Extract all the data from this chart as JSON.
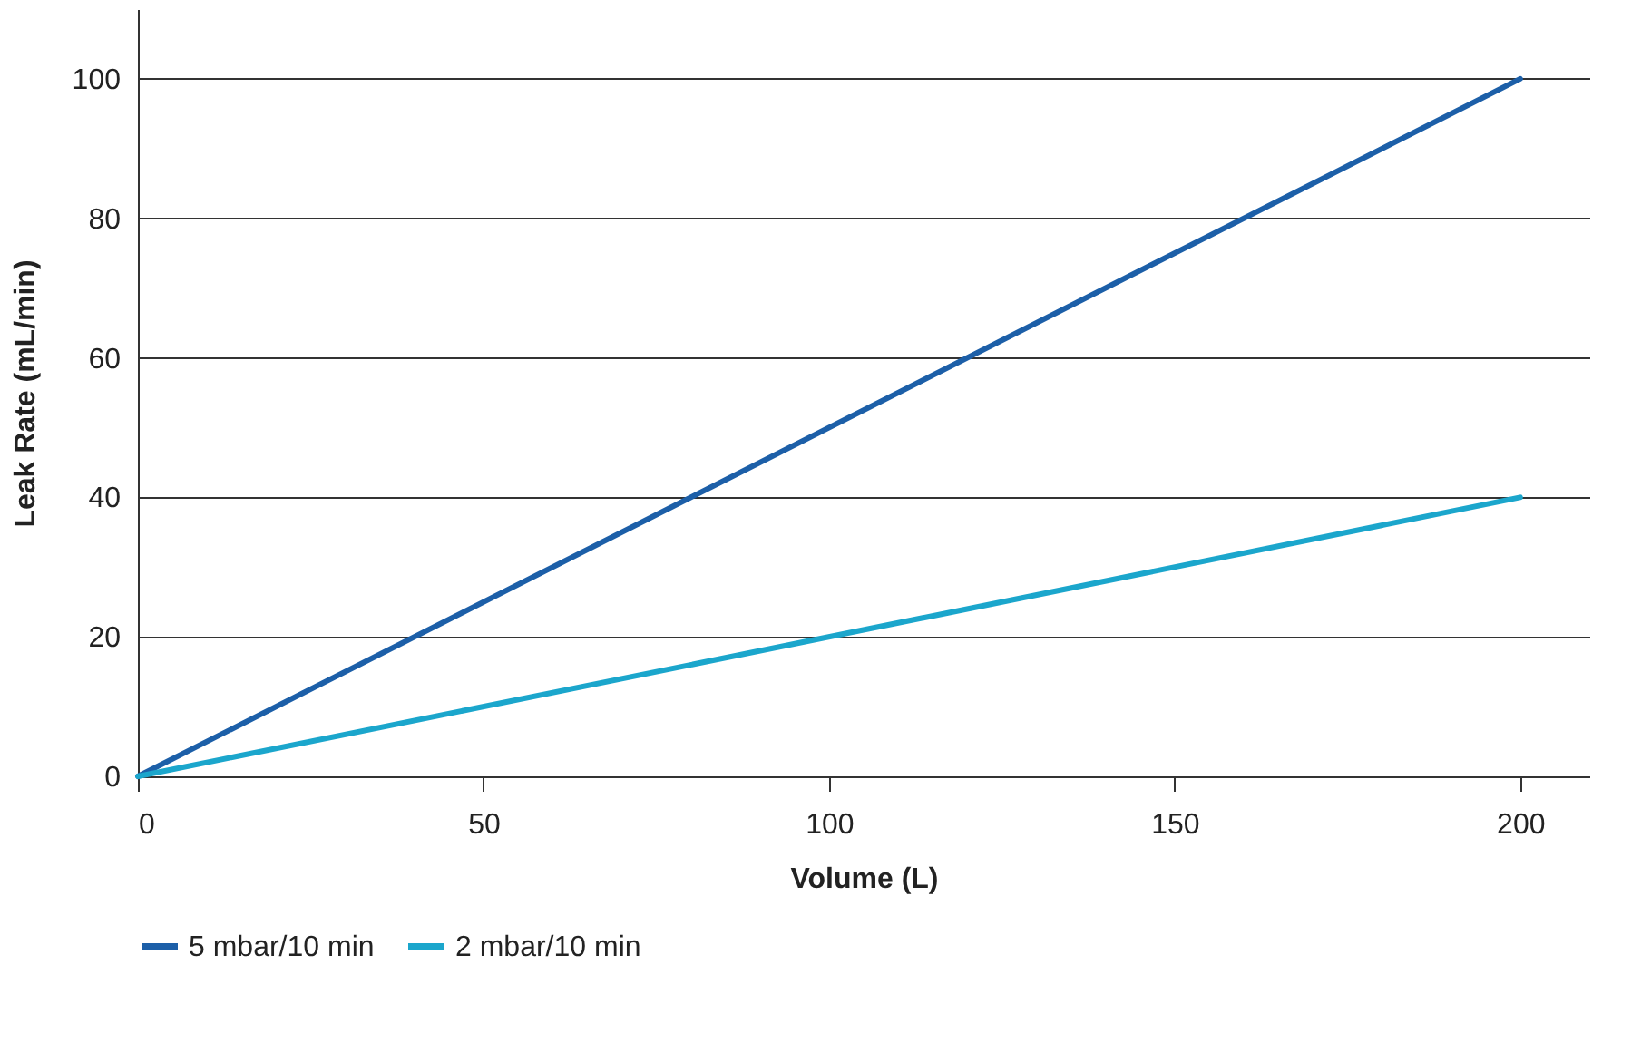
{
  "chart_data": {
    "type": "line",
    "xlabel": "Volume (L)",
    "ylabel": "Leak Rate (mL/min)",
    "x": [
      0,
      200
    ],
    "series": [
      {
        "name": "5 mbar/10 min",
        "color": "#1c5fa8",
        "values": [
          0,
          100
        ]
      },
      {
        "name": "2 mbar/10 min",
        "color": "#1ba6cc",
        "values": [
          0,
          40
        ]
      }
    ],
    "xlim": [
      0,
      210
    ],
    "xticks": [
      0,
      50,
      100,
      150,
      200
    ],
    "ylim": [
      0,
      110
    ],
    "yticks": [
      0,
      20,
      40,
      60,
      80,
      100
    ],
    "grid": "y",
    "legend": "bottom",
    "marker": "none",
    "line_style": "solid"
  }
}
